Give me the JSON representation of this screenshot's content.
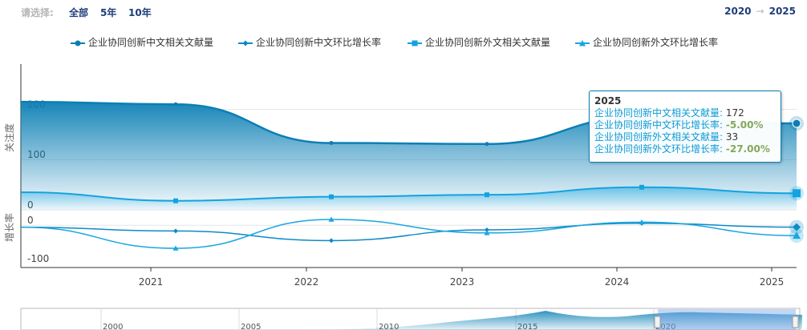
{
  "filter": {
    "label": "请选择:",
    "options": [
      "全部",
      "5年",
      "10年"
    ]
  },
  "range": {
    "from": "2020",
    "to": "2025",
    "arrow": "→"
  },
  "legend": [
    {
      "name": "企业协同创新中文相关文献量",
      "marker": "circle"
    },
    {
      "name": "企业协同创新中文环比增长率",
      "marker": "diamond"
    },
    {
      "name": "企业协同创新外文相关文献量",
      "marker": "square"
    },
    {
      "name": "企业协同创新外文环比增长率",
      "marker": "triangle"
    }
  ],
  "colors": {
    "cn_volume": "#0b7fb5",
    "cn_growth": "#0e8ac6",
    "en_volume": "#12a3e0",
    "en_growth": "#1aa6e2",
    "navigator": "#7aa7e8"
  },
  "tooltip": {
    "title": "2025",
    "rows": [
      {
        "key": "企业协同创新中文相关文献量:",
        "value": "172",
        "is_pct": false
      },
      {
        "key": "企业协同创新中文环比增长率:",
        "value": "-5.00%",
        "is_pct": true
      },
      {
        "key": "企业协同创新外文相关文献量:",
        "value": "33",
        "is_pct": false
      },
      {
        "key": "企业协同创新外文环比增长率:",
        "value": "-27.00%",
        "is_pct": true
      }
    ]
  },
  "chart_data": {
    "type": "area",
    "x": [
      "2020",
      "2021",
      "2022",
      "2023",
      "2024",
      "2025"
    ],
    "series": [
      {
        "name": "企业协同创新中文相关文献量",
        "values": [
          215,
          210,
          133,
          131,
          185,
          172
        ]
      },
      {
        "name": "企业协同创新外文相关文献量",
        "values": [
          35,
          18,
          26,
          30,
          45,
          33
        ]
      },
      {
        "name": "企业协同创新中文环比增长率",
        "values": [
          -5,
          -15,
          -40,
          -12,
          5,
          -5
        ]
      },
      {
        "name": "企业协同创新外文环比增长率",
        "values": [
          -5,
          -60,
          15,
          -20,
          8,
          -27
        ]
      }
    ],
    "yaxis_top": {
      "title": "关注度",
      "ticks": [
        "200",
        "100",
        "0"
      ],
      "range": [
        0,
        290
      ]
    },
    "yaxis_bottom": {
      "title": "增长率",
      "ticks": [
        "0",
        "-100"
      ],
      "range": [
        -110,
        40
      ]
    },
    "xaxis_ticks": [
      "2021",
      "2022",
      "2023",
      "2024",
      "2025"
    ],
    "navigator_ticks": [
      "2000",
      "2005",
      "2010",
      "2015",
      "2020"
    ],
    "legend_position": "top",
    "grid": true
  }
}
